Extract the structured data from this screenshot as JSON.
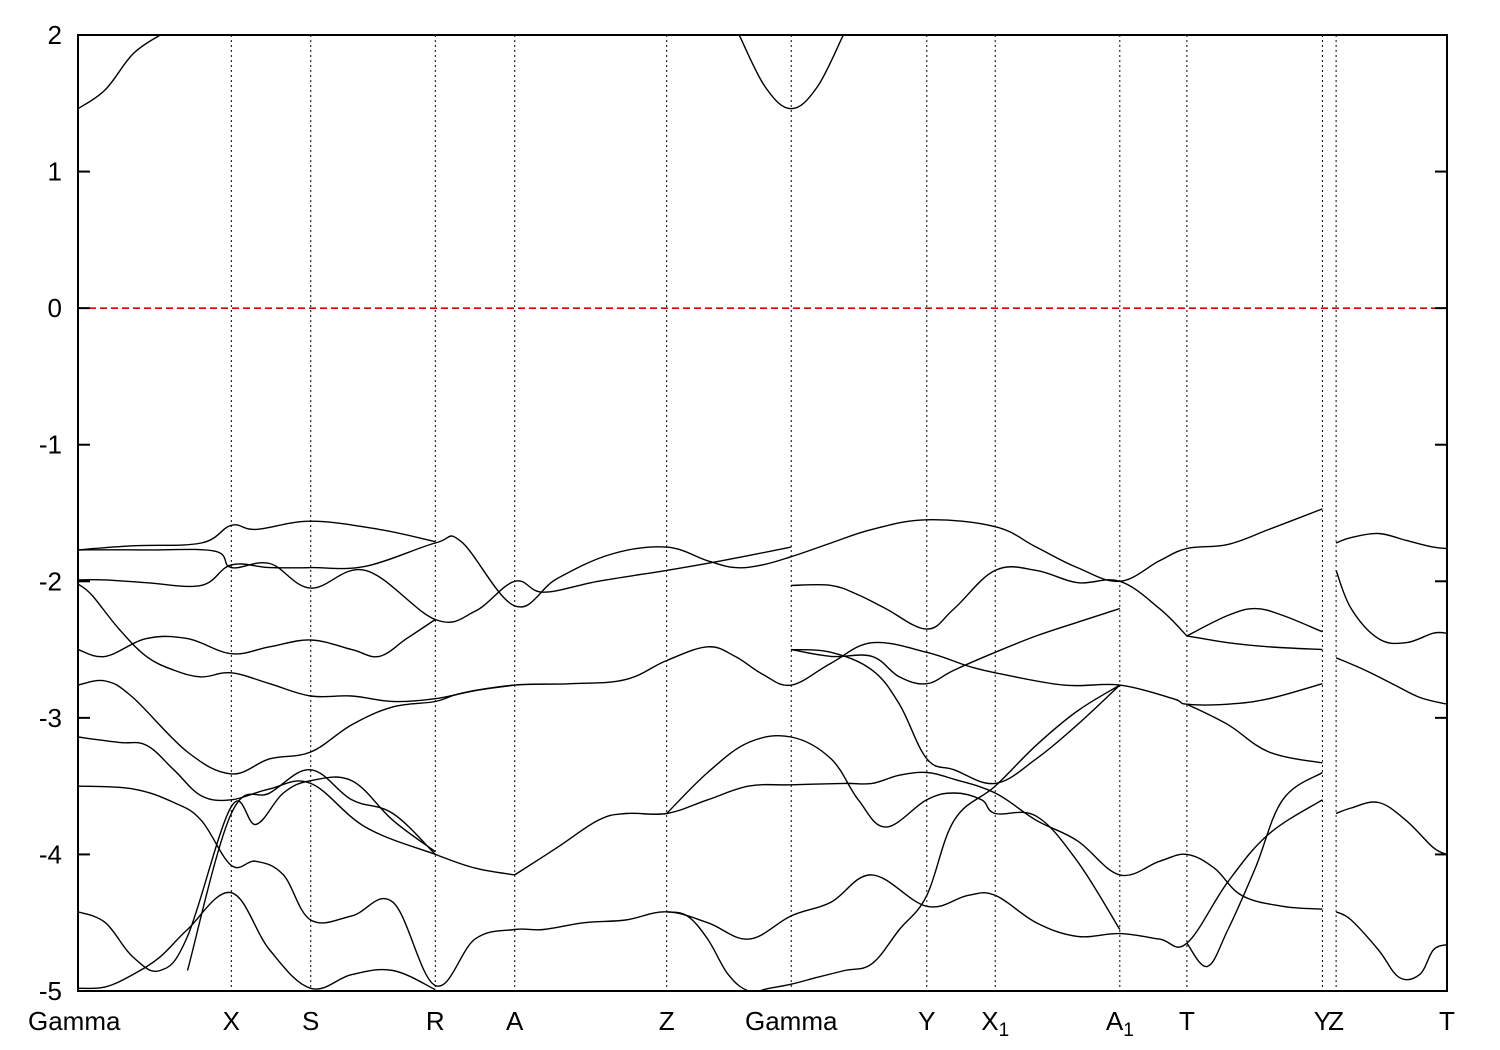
{
  "chart_data": {
    "type": "line",
    "title": "",
    "xlabel": "",
    "ylabel": "",
    "ylim": [
      -5,
      2
    ],
    "yticks": [
      -5,
      -4,
      -3,
      -2,
      -1,
      0,
      1,
      2
    ],
    "xlim": [
      0,
      100
    ],
    "grid": "vertical dotted lines at high-symmetry points",
    "legend": "none",
    "kpoints": [
      {
        "pos": 0.0,
        "label": "Gamma",
        "sub": ""
      },
      {
        "pos": 11.2,
        "label": "X",
        "sub": ""
      },
      {
        "pos": 17.0,
        "label": "S",
        "sub": ""
      },
      {
        "pos": 26.1,
        "label": "R",
        "sub": ""
      },
      {
        "pos": 31.9,
        "label": "A",
        "sub": ""
      },
      {
        "pos": 43.0,
        "label": "Z",
        "sub": ""
      },
      {
        "pos": 52.1,
        "label": "Gamma",
        "sub": ""
      },
      {
        "pos": 62.0,
        "label": "Y",
        "sub": ""
      },
      {
        "pos": 67.0,
        "label": "X",
        "sub": "1"
      },
      {
        "pos": 76.1,
        "label": "A",
        "sub": "1"
      },
      {
        "pos": 81.0,
        "label": "T",
        "sub": ""
      },
      {
        "pos": 90.9,
        "label": "Y",
        "sub": ""
      },
      {
        "pos": 91.9,
        "label": "Z",
        "sub": ""
      },
      {
        "pos": 100.0,
        "label": "T",
        "sub": ""
      }
    ],
    "fermi_level": {
      "y": 0,
      "color": "#dd0000",
      "style": "dashed"
    },
    "band_color": "#000000",
    "series": [
      {
        "x": [
          0,
          2,
          4,
          6
        ],
        "y": [
          1.46,
          1.6,
          1.86,
          2.0
        ]
      },
      {
        "x": [
          48.3,
          50.2,
          52.1,
          54.0,
          55.9
        ],
        "y": [
          2.0,
          1.62,
          1.46,
          1.62,
          2.0
        ]
      },
      {
        "x": [
          0,
          4,
          9,
          11.2,
          13,
          17,
          22,
          26.1
        ],
        "y": [
          -1.77,
          -1.74,
          -1.72,
          -1.59,
          -1.62,
          -1.56,
          -1.62,
          -1.71
        ]
      },
      {
        "x": [
          0,
          5,
          10,
          11.2,
          14,
          17,
          21,
          26.1,
          29,
          31.9,
          34,
          38,
          43,
          47,
          52.1
        ],
        "y": [
          -1.77,
          -1.77,
          -1.78,
          -1.9,
          -1.87,
          -2.05,
          -1.92,
          -2.28,
          -2.22,
          -2.0,
          -2.08,
          -2.0,
          -1.92,
          -1.85,
          -1.75
        ]
      },
      {
        "x": [
          0,
          2,
          5,
          9,
          11.2,
          14,
          17,
          21,
          26.1,
          28,
          31.9,
          35,
          39,
          43,
          46,
          48,
          50,
          52.1,
          55,
          58,
          62,
          67,
          70,
          73,
          76.1,
          79,
          81,
          84,
          87,
          90.9
        ],
        "y": [
          -1.99,
          -1.99,
          -2.01,
          -2.03,
          -1.88,
          -1.9,
          -1.9,
          -1.89,
          -1.72,
          -1.71,
          -2.18,
          -1.98,
          -1.8,
          -1.75,
          -1.85,
          -1.9,
          -1.88,
          -1.82,
          -1.72,
          -1.62,
          -1.55,
          -1.6,
          -1.75,
          -1.9,
          -2.0,
          -1.85,
          -1.76,
          -1.73,
          -1.62,
          -1.47
        ]
      },
      {
        "x": [
          0,
          1,
          3,
          5,
          7,
          9,
          11.2,
          14,
          17,
          20,
          23,
          26.1,
          29,
          31.9
        ],
        "y": [
          -2.02,
          -2.1,
          -2.35,
          -2.55,
          -2.65,
          -2.7,
          -2.67,
          -2.75,
          -2.84,
          -2.84,
          -2.88,
          -2.86,
          -2.8,
          -2.76
        ]
      },
      {
        "x": [
          0,
          2,
          5,
          8,
          11.2,
          14,
          17,
          20,
          22,
          24,
          26.1
        ],
        "y": [
          -2.5,
          -2.55,
          -2.42,
          -2.42,
          -2.53,
          -2.48,
          -2.43,
          -2.5,
          -2.55,
          -2.42,
          -2.28
        ]
      },
      {
        "x": [
          0,
          2,
          4,
          8,
          11.2,
          14,
          17,
          20,
          23,
          26.1,
          28,
          31.9,
          36,
          40,
          43,
          46,
          48,
          50,
          52.1,
          55,
          58,
          62,
          65,
          67,
          72,
          76.1,
          80,
          81,
          84,
          87,
          90.9
        ],
        "y": [
          -2.76,
          -2.73,
          -2.85,
          -3.25,
          -3.41,
          -3.3,
          -3.25,
          -3.05,
          -2.92,
          -2.88,
          -2.82,
          -2.76,
          -2.75,
          -2.72,
          -2.58,
          -2.48,
          -2.55,
          -2.68,
          -2.76,
          -2.6,
          -2.45,
          -2.52,
          -2.62,
          -2.67,
          -2.76,
          -2.76,
          -2.86,
          -2.9,
          -2.9,
          -2.86,
          -2.75
        ]
      },
      {
        "x": [
          0,
          3,
          5,
          7,
          9,
          11.2,
          14,
          17,
          21,
          26.1,
          29,
          31.9
        ],
        "y": [
          -3.14,
          -3.18,
          -3.2,
          -3.38,
          -3.57,
          -3.6,
          -3.52,
          -3.48,
          -3.8,
          -4.0,
          -4.1,
          -4.15
        ]
      },
      {
        "x": [
          0,
          4,
          7,
          9,
          11.2,
          13,
          15,
          17,
          20,
          23,
          26.1,
          29,
          31.9,
          34,
          37,
          40,
          43,
          46,
          49,
          52.1,
          55,
          58,
          62,
          65,
          67,
          70,
          73,
          76.1,
          79,
          81,
          84,
          87,
          90.9
        ],
        "y": [
          -3.5,
          -3.52,
          -3.62,
          -3.75,
          -4.08,
          -4.05,
          -4.15,
          -4.48,
          -4.45,
          -4.35,
          -4.96,
          -4.62,
          -4.55,
          -4.55,
          -4.5,
          -4.48,
          -4.42,
          -4.5,
          -4.62,
          -4.45,
          -4.35,
          -4.15,
          -4.38,
          -4.3,
          -4.3,
          -4.5,
          -4.6,
          -4.58,
          -4.62,
          -4.65,
          -4.2,
          -3.85,
          -3.6
        ]
      },
      {
        "x": [
          0,
          2,
          4,
          6,
          8,
          11.2,
          13,
          15,
          17,
          20,
          23,
          26.1
        ],
        "y": [
          -4.42,
          -4.5,
          -4.75,
          -4.85,
          -4.6,
          -3.65,
          -3.78,
          -3.55,
          -3.46,
          -3.46,
          -3.75,
          -3.98
        ]
      },
      {
        "x": [
          0,
          2,
          4,
          6,
          8,
          11.2,
          14,
          17,
          20,
          23,
          26.1
        ],
        "y": [
          -4.98,
          -4.97,
          -4.88,
          -4.75,
          -4.55,
          -4.28,
          -4.7,
          -4.98,
          -4.88,
          -4.85,
          -4.99
        ]
      },
      {
        "x": [
          8,
          11.2,
          14,
          17,
          20,
          23,
          26.1
        ],
        "y": [
          -4.85,
          -3.7,
          -3.55,
          -3.38,
          -3.6,
          -3.7,
          -4.0
        ]
      },
      {
        "x": [
          31.9,
          35,
          38,
          40,
          43,
          46,
          49,
          52.1,
          56,
          58,
          60,
          62,
          64,
          67,
          70,
          73,
          76.1,
          79,
          81,
          83,
          85,
          88,
          90.9
        ],
        "y": [
          -4.15,
          -3.95,
          -3.75,
          -3.7,
          -3.7,
          -3.6,
          -3.5,
          -3.49,
          -3.48,
          -3.48,
          -3.42,
          -3.4,
          -3.45,
          -3.55,
          -3.75,
          -3.9,
          -4.15,
          -4.05,
          -4.0,
          -4.1,
          -4.3,
          -4.38,
          -4.4
        ]
      },
      {
        "x": [
          43,
          46,
          49,
          52.1,
          55,
          57,
          59,
          62,
          64,
          66,
          67,
          70,
          73,
          76.1
        ],
        "y": [
          -3.7,
          -3.4,
          -3.18,
          -3.14,
          -3.3,
          -3.6,
          -3.8,
          -3.6,
          -3.55,
          -3.6,
          -3.7,
          -3.72,
          -4.05,
          -4.55
        ]
      },
      {
        "x": [
          43,
          44.5,
          46,
          47.5,
          49,
          50.5,
          52.1,
          54,
          56,
          58,
          60,
          62,
          64,
          67,
          70,
          73,
          76.1
        ],
        "y": [
          -4.42,
          -4.45,
          -4.62,
          -4.88,
          -5.0,
          -4.98,
          -4.95,
          -4.9,
          -4.85,
          -4.8,
          -4.55,
          -4.3,
          -3.75,
          -3.5,
          -3.2,
          -2.95,
          -2.76
        ]
      },
      {
        "x": [
          52.1,
          55,
          58,
          60,
          62,
          64,
          67,
          70,
          73,
          76.1
        ],
        "y": [
          -2.5,
          -2.52,
          -2.65,
          -2.9,
          -3.3,
          -3.38,
          -3.48,
          -3.3,
          -3.05,
          -2.76
        ]
      },
      {
        "x": [
          52.1,
          55,
          57,
          59,
          62,
          64,
          67,
          70,
          73,
          76.1,
          79,
          81
        ],
        "y": [
          -2.03,
          -2.03,
          -2.1,
          -2.2,
          -2.35,
          -2.2,
          -1.92,
          -1.92,
          -2.01,
          -2.0,
          -2.2,
          -2.4
        ]
      },
      {
        "x": [
          52.1,
          55,
          58,
          60,
          62,
          64,
          67,
          70,
          73,
          76.1
        ],
        "y": [
          -2.5,
          -2.55,
          -2.55,
          -2.7,
          -2.75,
          -2.65,
          -2.52,
          -2.4,
          -2.3,
          -2.2
        ]
      },
      {
        "x": [
          81,
          84,
          86,
          88,
          90.9
        ],
        "y": [
          -2.4,
          -2.25,
          -2.2,
          -2.25,
          -2.37
        ]
      },
      {
        "x": [
          81,
          84,
          87,
          90.9
        ],
        "y": [
          -2.4,
          -2.45,
          -2.48,
          -2.5
        ]
      },
      {
        "x": [
          81,
          84,
          87,
          90.9
        ],
        "y": [
          -2.9,
          -3.05,
          -3.25,
          -3.33
        ]
      },
      {
        "x": [
          81,
          82.5,
          84,
          86,
          88,
          90.9
        ],
        "y": [
          -4.65,
          -4.82,
          -4.55,
          -4.1,
          -3.6,
          -3.4
        ]
      },
      {
        "x": [
          91.9,
          93,
          95,
          97,
          99,
          100
        ],
        "y": [
          -1.72,
          -1.68,
          -1.65,
          -1.7,
          -1.75,
          -1.76
        ]
      },
      {
        "x": [
          91.9,
          93,
          95,
          97,
          99,
          100
        ],
        "y": [
          -1.92,
          -2.2,
          -2.42,
          -2.45,
          -2.38,
          -2.38
        ]
      },
      {
        "x": [
          91.9,
          94,
          96,
          98,
          100
        ],
        "y": [
          -2.56,
          -2.65,
          -2.75,
          -2.85,
          -2.9
        ]
      },
      {
        "x": [
          91.9,
          93,
          95,
          97,
          99,
          100
        ],
        "y": [
          -3.7,
          -3.66,
          -3.62,
          -3.75,
          -3.95,
          -4.0
        ]
      },
      {
        "x": [
          91.9,
          93,
          95,
          96.5,
          98,
          99,
          100
        ],
        "y": [
          -4.42,
          -4.48,
          -4.7,
          -4.9,
          -4.88,
          -4.7,
          -4.66
        ]
      }
    ]
  }
}
